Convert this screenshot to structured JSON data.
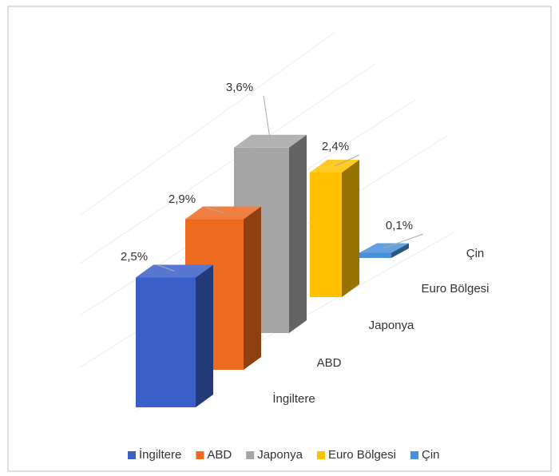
{
  "chart_data": {
    "type": "bar",
    "categories": [
      "İngiltere",
      "ABD",
      "Japonya",
      "Euro Bölgesi",
      "Çin"
    ],
    "values": [
      2.5,
      2.9,
      3.6,
      2.4,
      0.1
    ],
    "value_labels": [
      "2,5%",
      "2,9%",
      "3,6%",
      "2,4%",
      "0,1%"
    ],
    "colors": [
      "#3a5fc8",
      "#ed6a1f",
      "#a5a5a5",
      "#ffc000",
      "#4a90d9"
    ],
    "legend": "bottom"
  }
}
